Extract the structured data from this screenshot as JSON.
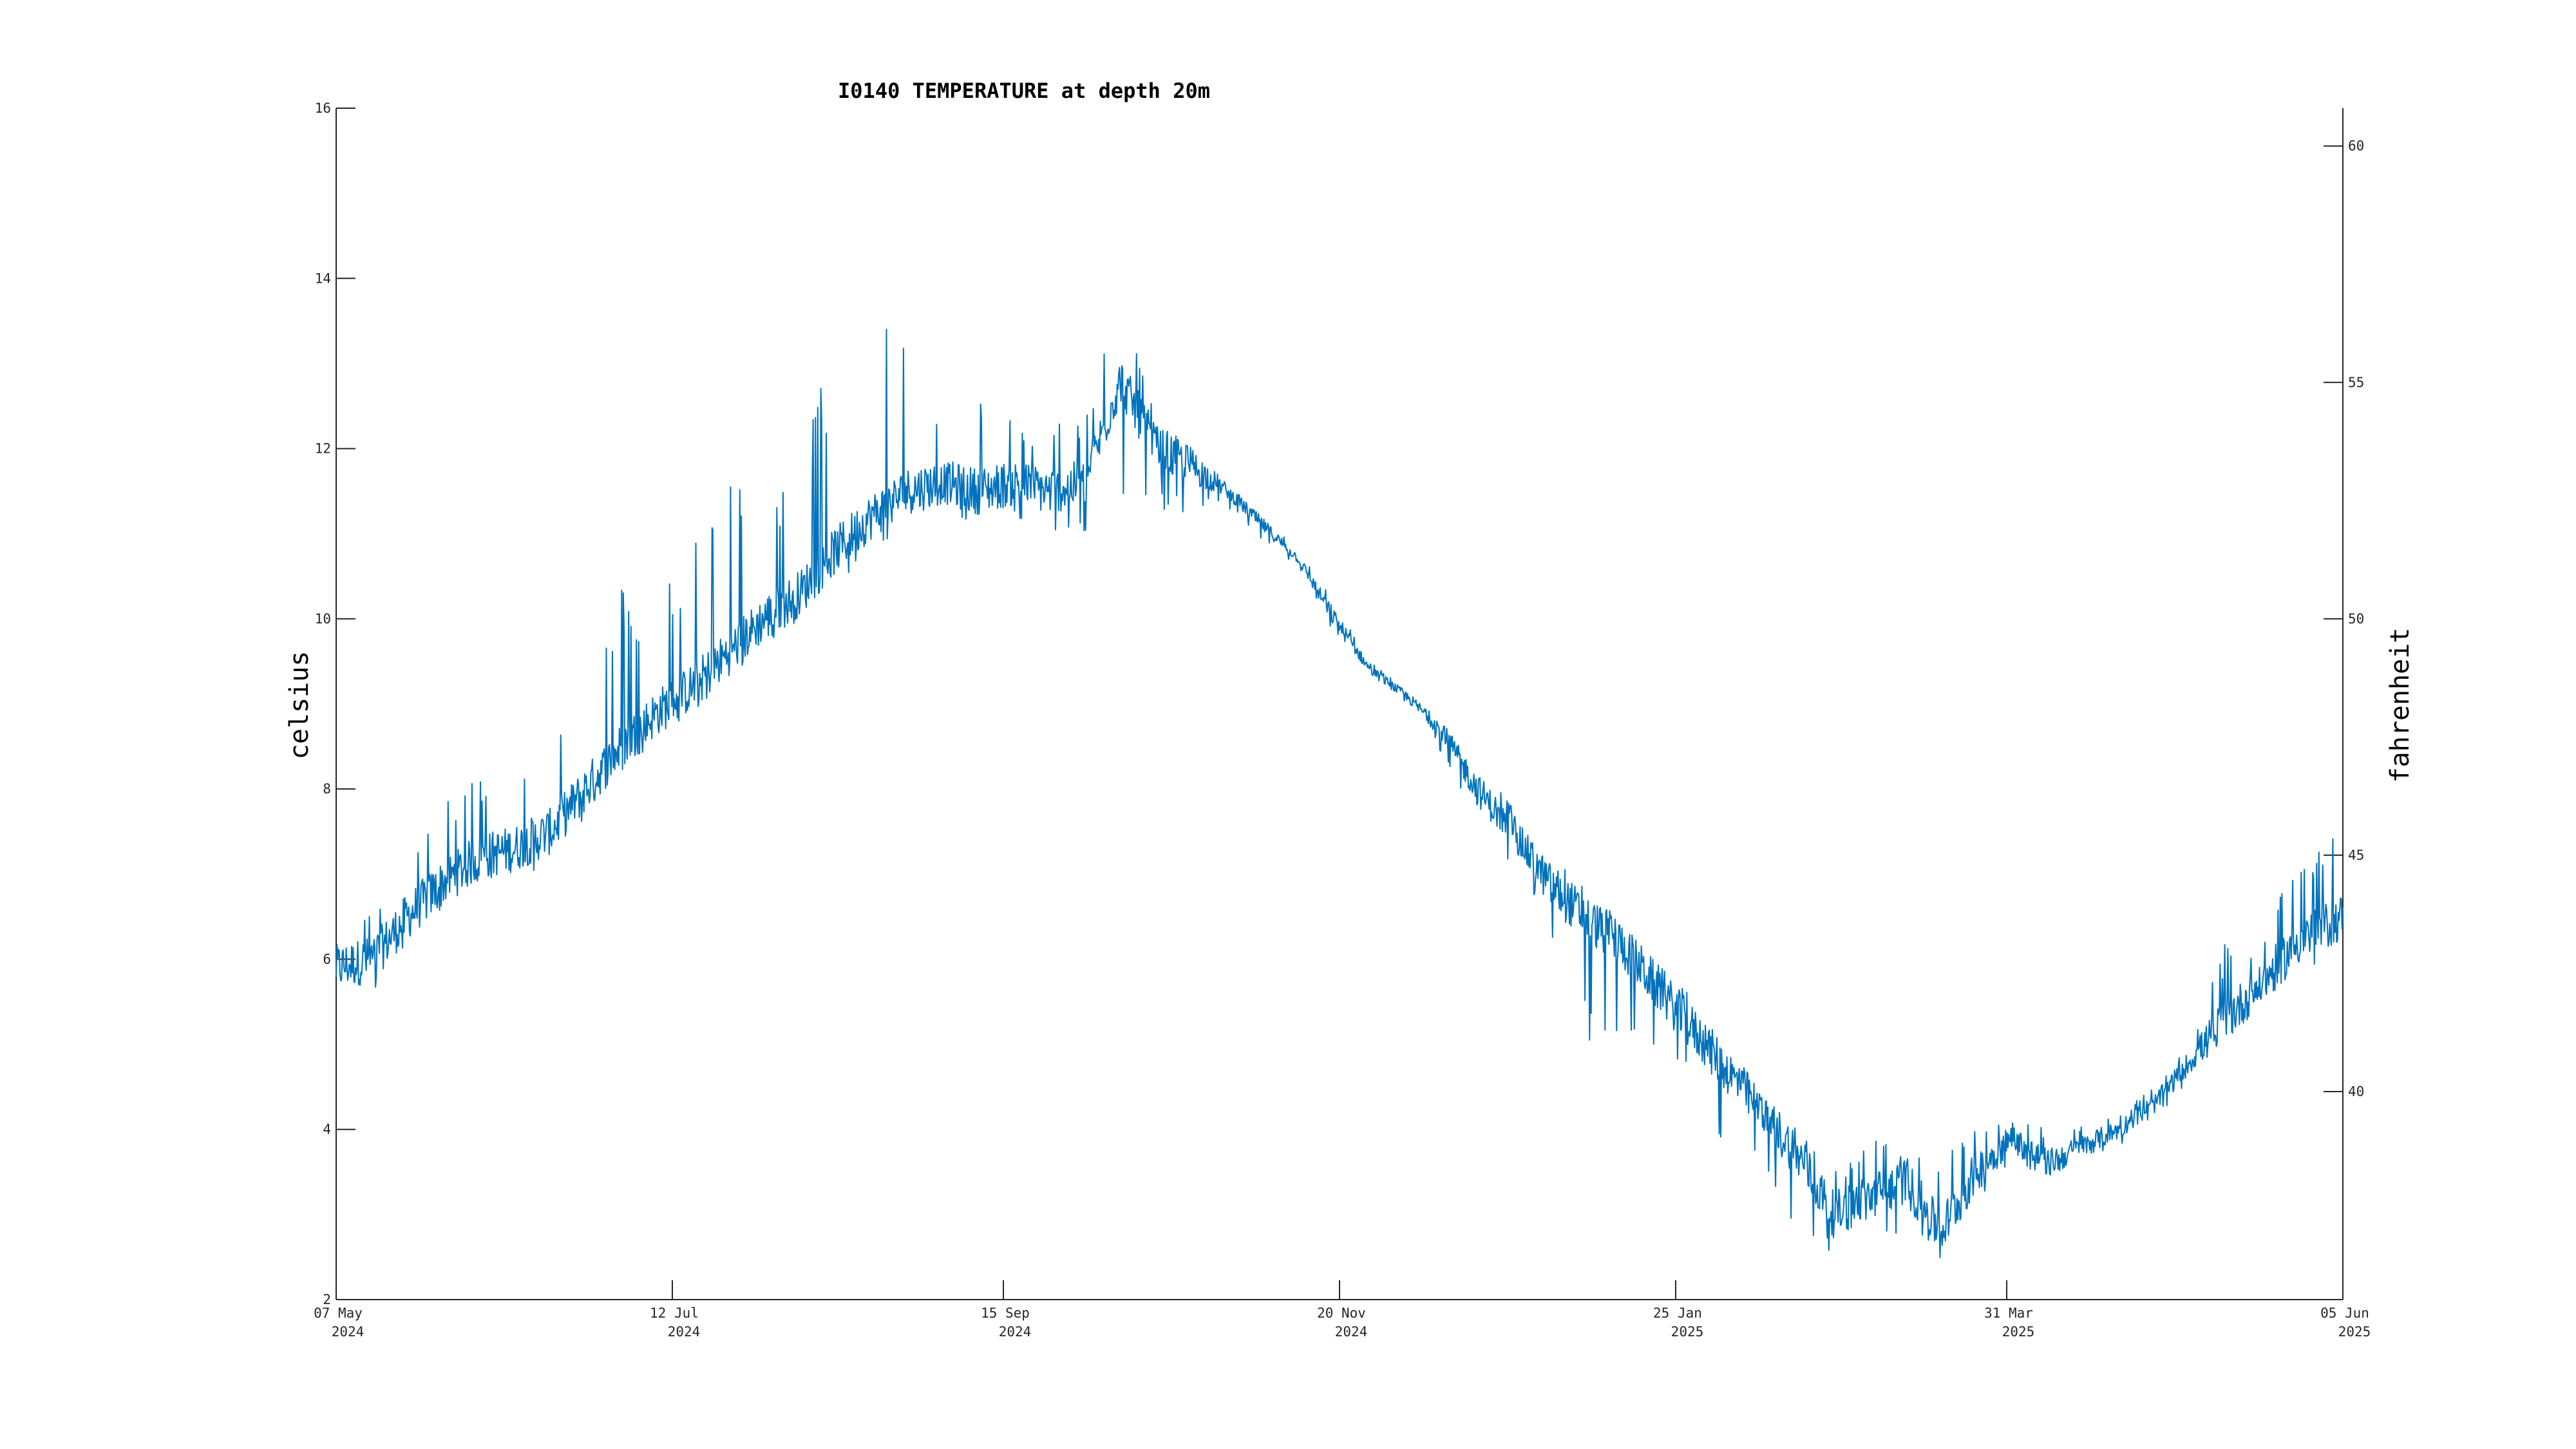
{
  "chart_data": {
    "type": "line",
    "title": "I0140 TEMPERATURE at depth 20m",
    "ylabel": "celsius",
    "ylabel_right": "fahrenheit",
    "xlabel": "",
    "ylim": [
      2,
      16
    ],
    "yticks": [
      2,
      4,
      6,
      8,
      10,
      12,
      14,
      16
    ],
    "ylim_right": [
      35.6,
      60.8
    ],
    "yticks_right": [
      40,
      45,
      50,
      55,
      60
    ],
    "x_range": [
      "2024-05-07",
      "2025-06-05"
    ],
    "xticks": [
      {
        "date": "2024-05-07",
        "line1": "07 May",
        "line2": "2024"
      },
      {
        "date": "2024-07-12",
        "line1": "12 Jul",
        "line2": "2024"
      },
      {
        "date": "2024-09-15",
        "line1": "15 Sep",
        "line2": "2024"
      },
      {
        "date": "2024-11-20",
        "line1": "20 Nov",
        "line2": "2024"
      },
      {
        "date": "2025-01-25",
        "line1": "25 Jan",
        "line2": "2025"
      },
      {
        "date": "2025-03-31",
        "line1": "31 Mar",
        "line2": "2025"
      },
      {
        "date": "2025-06-05",
        "line1": "05 Jun",
        "line2": "2025"
      }
    ],
    "grid": false,
    "color": "#0072BD",
    "series": [
      {
        "x": [
          "2024-05-07",
          "2024-05-14",
          "2024-05-21",
          "2024-05-28",
          "2024-06-04",
          "2024-06-11",
          "2024-06-18",
          "2024-06-25",
          "2024-07-02",
          "2024-07-09",
          "2024-07-16",
          "2024-07-23",
          "2024-07-30",
          "2024-08-06",
          "2024-08-13",
          "2024-08-20",
          "2024-08-27",
          "2024-09-03",
          "2024-09-10",
          "2024-09-17",
          "2024-09-24",
          "2024-10-01",
          "2024-10-08",
          "2024-10-15",
          "2024-10-22",
          "2024-10-29",
          "2024-11-05",
          "2024-11-12",
          "2024-11-19",
          "2024-11-26",
          "2024-12-03",
          "2024-12-10",
          "2024-12-17",
          "2024-12-24",
          "2024-12-31",
          "2025-01-07",
          "2025-01-14",
          "2025-01-21",
          "2025-01-28",
          "2025-02-04",
          "2025-02-11",
          "2025-02-18",
          "2025-02-25",
          "2025-03-04",
          "2025-03-11",
          "2025-03-18",
          "2025-03-25",
          "2025-04-01",
          "2025-04-08",
          "2025-04-15",
          "2025-04-22",
          "2025-04-29",
          "2025-05-06",
          "2025-05-13",
          "2025-05-20",
          "2025-05-27",
          "2025-06-05"
        ],
        "y": [
          5.9,
          6.0,
          6.5,
          6.9,
          7.2,
          7.3,
          7.5,
          8.0,
          8.5,
          8.9,
          9.2,
          9.6,
          10.0,
          10.3,
          10.8,
          11.2,
          11.5,
          11.6,
          11.5,
          11.6,
          11.5,
          11.6,
          12.8,
          12.0,
          11.8,
          11.5,
          11.1,
          10.7,
          10.0,
          9.4,
          9.1,
          8.7,
          8.0,
          7.5,
          6.9,
          6.5,
          6.2,
          5.7,
          5.2,
          4.7,
          4.2,
          3.7,
          3.0,
          3.2,
          3.4,
          2.8,
          3.5,
          3.9,
          3.6,
          3.8,
          4.0,
          4.3,
          4.8,
          5.3,
          5.7,
          6.2,
          6.5
        ],
        "y_high": [
          6.4,
          6.6,
          7.3,
          7.8,
          8.2,
          8.2,
          8.8,
          9.5,
          10.4,
          10.3,
          11.0,
          11.7,
          11.3,
          12.1,
          13.2,
          14.1,
          14.3,
          12.0,
          12.6,
          12.3,
          12.3,
          12.4,
          14.0,
          12.4,
          12.0,
          11.6,
          11.2,
          10.8,
          10.2,
          9.5,
          9.2,
          8.8,
          8.3,
          7.8,
          7.2,
          6.9,
          6.5,
          6.1,
          5.6,
          5.0,
          4.4,
          4.0,
          3.5,
          4.0,
          3.8,
          3.8,
          4.0,
          4.2,
          4.0,
          4.1,
          4.2,
          4.5,
          5.1,
          6.2,
          6.2,
          7.2,
          7.5
        ],
        "y_low": [
          5.4,
          5.6,
          6.2,
          6.5,
          6.8,
          6.9,
          7.1,
          7.6,
          8.1,
          8.6,
          8.9,
          9.2,
          9.6,
          10.0,
          10.4,
          10.6,
          11.1,
          11.2,
          11.1,
          11.1,
          11.0,
          11.0,
          11.4,
          11.3,
          11.2,
          11.3,
          10.9,
          10.6,
          9.8,
          9.3,
          9.0,
          8.4,
          7.6,
          7.1,
          6.3,
          5.0,
          4.9,
          5.0,
          4.5,
          3.4,
          3.7,
          2.6,
          2.5,
          2.7,
          2.8,
          2.4,
          3.1,
          3.6,
          3.4,
          3.6,
          3.8,
          4.1,
          4.6,
          5.1,
          5.4,
          5.9,
          6.0
        ]
      }
    ]
  }
}
